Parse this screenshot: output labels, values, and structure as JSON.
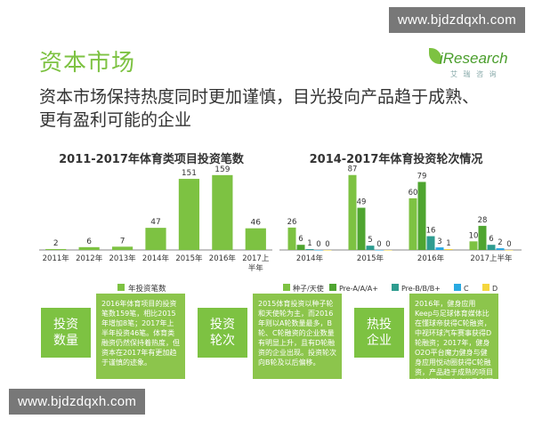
{
  "watermark": {
    "top": "www.bjdzdqxh.com",
    "bottom": "www.bjdzdqxh.com"
  },
  "logo": {
    "text": "iResearch",
    "sub": "艾 瑞 咨 询"
  },
  "header": {
    "title": "资本市场",
    "headline_line1": "资本市场保持热度同时更加谨慎，目光投向产品趋于成熟、",
    "headline_line2": "更有盈利可能的企业"
  },
  "colors": {
    "accent": "#7dc242",
    "dark_green": "#4fa530",
    "teal": "#2e9c8f",
    "blue": "#29a9e1",
    "yellow": "#f5d63d"
  },
  "chart_data": [
    {
      "type": "bar",
      "title": "2011-2017年体育类项目投资笔数",
      "categories": [
        "2011年",
        "2012年",
        "2013年",
        "2014年",
        "2015年",
        "2016年",
        "2017上半年"
      ],
      "series": [
        {
          "name": "年投资笔数",
          "values": [
            2,
            6,
            7,
            47,
            151,
            159,
            46
          ]
        }
      ],
      "ylim": [
        0,
        170
      ],
      "grid": false,
      "legend": "bottom"
    },
    {
      "type": "bar",
      "title": "2014-2017年体育投资轮次情况",
      "categories": [
        "2014年",
        "2015年",
        "2016年",
        "2017上半年"
      ],
      "series": [
        {
          "name": "种子/天使",
          "values": [
            26,
            87,
            60,
            10
          ]
        },
        {
          "name": "Pre-A/A/A+",
          "values": [
            6,
            49,
            79,
            28
          ]
        },
        {
          "name": "Pre-B/B/B+",
          "values": [
            1,
            5,
            16,
            6
          ]
        },
        {
          "name": "C",
          "values": [
            0,
            0,
            3,
            2
          ]
        },
        {
          "name": "D",
          "values": [
            0,
            0,
            1,
            0
          ]
        }
      ],
      "ylim": [
        0,
        95
      ],
      "grid": false,
      "legend": "bottom"
    }
  ],
  "cards": [
    {
      "tag_line1": "投资",
      "tag_line2": "数量",
      "text": "2016年体育项目的投资笔数159笔，相比2015年增加8笔；2017年上半年投资46笔。体育类融资仍然保持着热度，但资本在2017年有更加趋于谨慎的迹象。"
    },
    {
      "tag_line1": "投资",
      "tag_line2": "轮次",
      "text": "2015体育投资以种子轮和天使轮为主，而2016年则以A轮数量最多，B轮、C轮融资的企业数量有明显上升，且有D轮融资的企业出现。投资轮次向B轮及以后偏移。"
    },
    {
      "tag_line1": "热投",
      "tag_line2": "企业",
      "text": "2016年，健身应用Keep与足球体育媒体比在懂球帝获得C轮融资，中视环球汽车赛事获得D轮融资；2017年，健身O2O平台魔力健身与健身应用悦动圈获得C轮融资，产品趋于成熟的项目继续沉淀，资本的盈利预期上升。"
    }
  ]
}
